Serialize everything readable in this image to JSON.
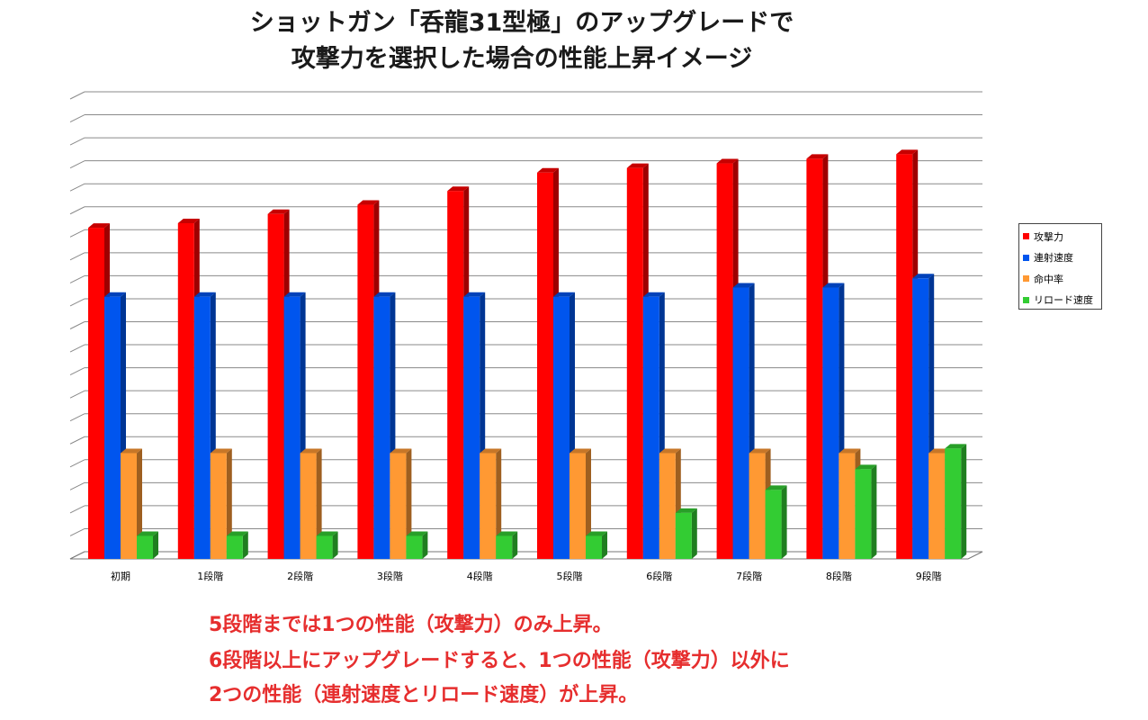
{
  "title": {
    "line1": "ショットガン「呑龍31型極」のアップグレードで",
    "line2": "攻撃力を選択した場合の性能上昇イメージ"
  },
  "chart_data": {
    "type": "bar",
    "categories": [
      "初期",
      "1段階",
      "2段階",
      "3段階",
      "4段階",
      "5段階",
      "6段階",
      "7段階",
      "8段階",
      "9段階"
    ],
    "series": [
      {
        "name": "攻撃力",
        "color": "#ff0000",
        "values": [
          72,
          73,
          75,
          77,
          80,
          84,
          85,
          86,
          87,
          88
        ]
      },
      {
        "name": "連射速度",
        "color": "#0055ee",
        "values": [
          57,
          57,
          57,
          57,
          57,
          57,
          57,
          59,
          59,
          61
        ]
      },
      {
        "name": "命中率",
        "color": "#ff9933",
        "values": [
          23,
          23,
          23,
          23,
          23,
          23,
          23,
          23,
          23,
          23
        ]
      },
      {
        "name": "リロード速度",
        "color": "#33cc33",
        "values": [
          5,
          5,
          5,
          5,
          5,
          5,
          10,
          15,
          19.5,
          24
        ]
      }
    ],
    "ylim": [
      0,
      100
    ],
    "grid": true,
    "yticks_shown": false,
    "legend_position": "right",
    "xlabel": "",
    "ylabel": ""
  },
  "notes": {
    "line1": "5段階までは1つの性能（攻撃力）のみ上昇。",
    "line2": "6段階以上にアップグレードすると、1つの性能（攻撃力）以外に",
    "line3": "2つの性能（連射速度とリロード速度）が上昇。"
  }
}
